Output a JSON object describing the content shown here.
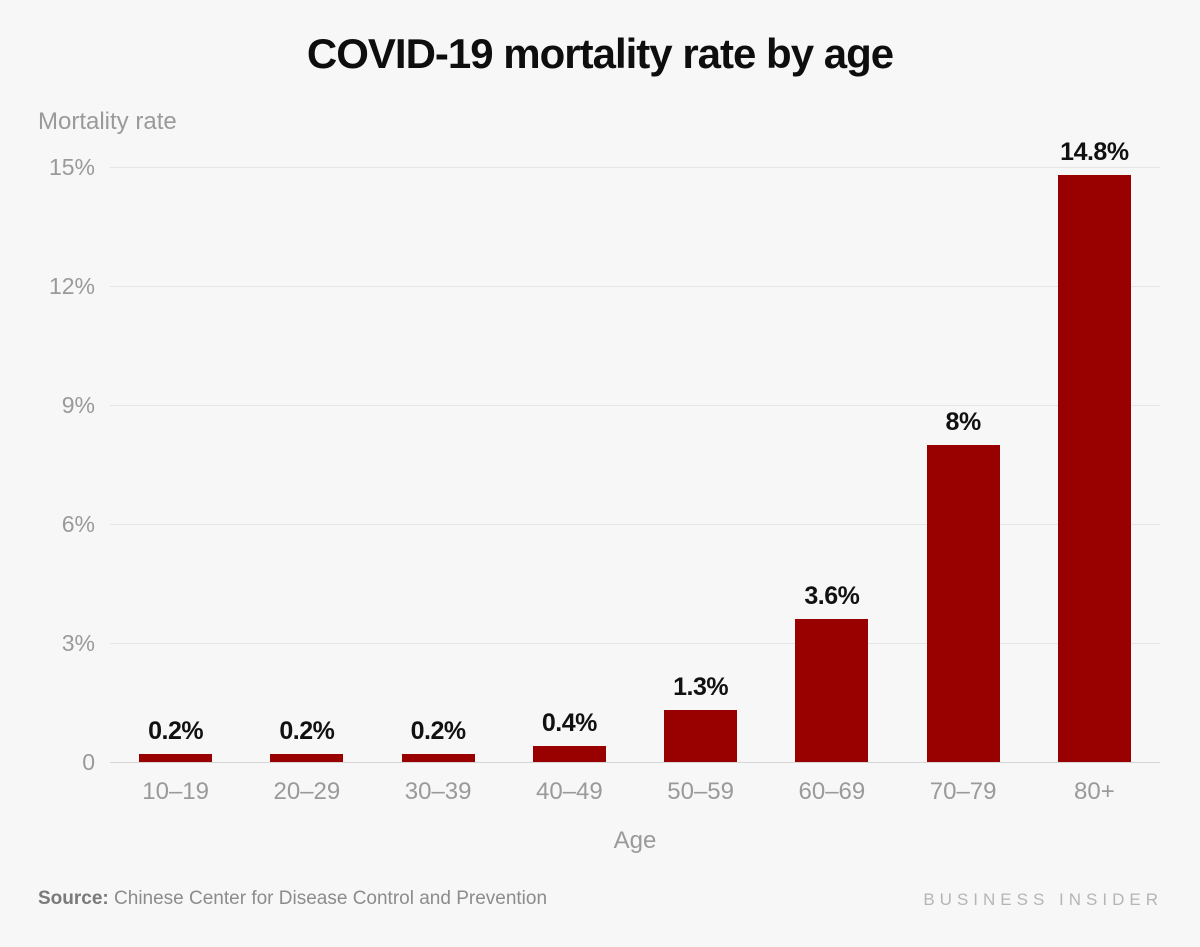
{
  "header": {
    "title": "COVID-19 mortality rate by age"
  },
  "chart_data": {
    "type": "bar",
    "title": "COVID-19 mortality rate by age",
    "categories": [
      "10–19",
      "20–29",
      "30–39",
      "40–49",
      "50–59",
      "60–69",
      "70–79",
      "80+"
    ],
    "values": [
      0.2,
      0.2,
      0.2,
      0.4,
      1.3,
      3.6,
      8,
      14.8
    ],
    "value_labels": [
      "0.2%",
      "0.2%",
      "0.2%",
      "0.4%",
      "1.3%",
      "3.6%",
      "8%",
      "14.8%"
    ],
    "xlabel": "Age",
    "ylabel": "Mortality rate",
    "ylim": [
      0,
      15
    ],
    "yticks": [
      {
        "value": 15,
        "label": "15%"
      },
      {
        "value": 12,
        "label": "12%"
      },
      {
        "value": 9,
        "label": "9%"
      },
      {
        "value": 6,
        "label": "6%"
      },
      {
        "value": 3,
        "label": "3%"
      },
      {
        "value": 0,
        "label": "0"
      }
    ],
    "grid": "horizontal",
    "legend": "none",
    "bar_color": "#990000",
    "background_color": "#f7f7f7",
    "axis_text_color": "#9a9a9a"
  },
  "footer": {
    "source_label": "Source:",
    "source_text": " Chinese Center for Disease Control and Prevention",
    "brand": "BUSINESS INSIDER"
  }
}
